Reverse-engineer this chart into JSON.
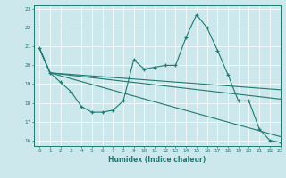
{
  "xlabel": "Humidex (Indice chaleur)",
  "background_color": "#cce8ec",
  "line_color": "#1e7a72",
  "xlim": [
    -0.5,
    23
  ],
  "ylim": [
    15.7,
    23.2
  ],
  "yticks": [
    16,
    17,
    18,
    19,
    20,
    21,
    22,
    23
  ],
  "xticks": [
    0,
    1,
    2,
    3,
    4,
    5,
    6,
    7,
    8,
    9,
    10,
    11,
    12,
    13,
    14,
    15,
    16,
    17,
    18,
    19,
    20,
    21,
    22,
    23
  ],
  "series": [
    {
      "x": [
        0,
        1,
        2,
        3,
        4,
        5,
        6,
        7,
        8,
        9,
        10,
        11,
        12,
        13,
        14,
        15,
        16,
        17,
        18,
        19,
        20,
        21,
        22,
        23
      ],
      "y": [
        20.9,
        19.6,
        19.1,
        18.6,
        17.8,
        17.5,
        17.5,
        17.6,
        18.1,
        20.3,
        19.8,
        19.9,
        20.0,
        20.0,
        21.5,
        22.7,
        22.0,
        20.8,
        19.5,
        18.1,
        18.1,
        16.6,
        16.0,
        15.9
      ],
      "marker": "+",
      "lw": 0.8
    },
    {
      "x": [
        0,
        1,
        23
      ],
      "y": [
        20.9,
        19.6,
        18.7
      ],
      "marker": null,
      "lw": 0.8
    },
    {
      "x": [
        0,
        1,
        23
      ],
      "y": [
        20.9,
        19.6,
        18.2
      ],
      "marker": null,
      "lw": 0.8
    },
    {
      "x": [
        0,
        1,
        23
      ],
      "y": [
        20.9,
        19.6,
        16.2
      ],
      "marker": null,
      "lw": 0.8
    }
  ],
  "figsize": [
    3.2,
    2.0
  ],
  "dpi": 100
}
